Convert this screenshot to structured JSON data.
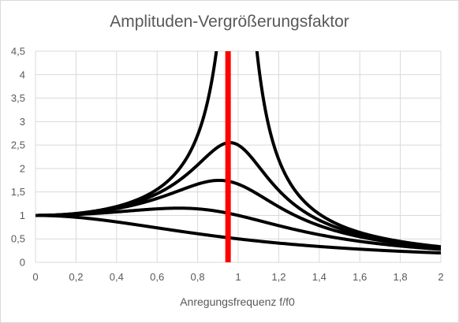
{
  "chart_data": {
    "type": "line",
    "title": "Amplituden-Vergrößerungsfaktor",
    "xlabel": "Anregungsfrequenz f/f0",
    "ylabel": "",
    "xlim": [
      0,
      2
    ],
    "ylim": [
      0,
      4.5
    ],
    "x_ticks": [
      "0",
      "0,2",
      "0,4",
      "0,6",
      "0,8",
      "1",
      "1,2",
      "1,4",
      "1,6",
      "1,8",
      "2"
    ],
    "y_ticks": [
      "0",
      "0,5",
      "1",
      "1,5",
      "2",
      "2,5",
      "3",
      "3,5",
      "4",
      "4,5"
    ],
    "grid": true,
    "line_color": "#000000",
    "series": [
      {
        "damping_ratio": 0.05
      },
      {
        "damping_ratio": 0.2
      },
      {
        "damping_ratio": 0.3
      },
      {
        "damping_ratio": 0.5
      },
      {
        "damping_ratio": 1.0
      }
    ],
    "marker": {
      "x": 0.95,
      "color": "#ff0000"
    }
  }
}
